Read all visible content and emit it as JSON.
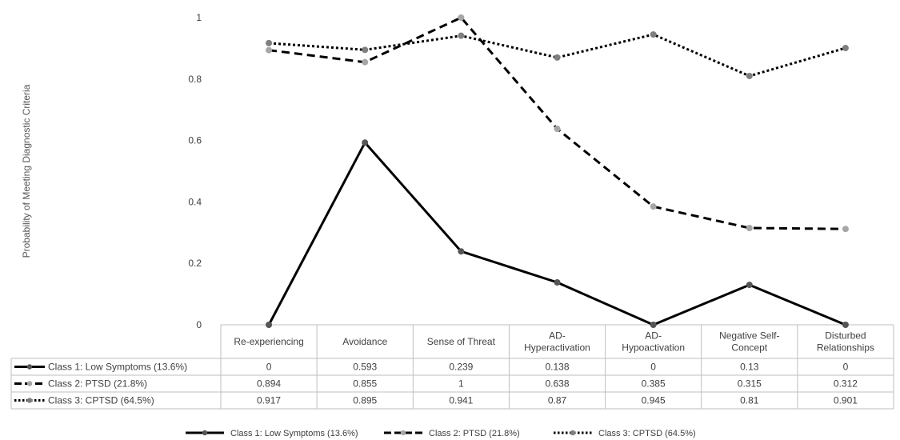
{
  "chart_data": {
    "type": "line",
    "ylabel": "Probability of Meeting Diagnostic Criteria",
    "ylim": [
      0,
      1
    ],
    "yticks": [
      "0",
      "0.2",
      "0.4",
      "0.6",
      "0.8",
      "1"
    ],
    "categories": [
      [
        "Re-experiencing"
      ],
      [
        "Avoidance"
      ],
      [
        "Sense of Threat"
      ],
      [
        "AD-",
        "Hyperactivation"
      ],
      [
        "AD-",
        "Hypoactivation"
      ],
      [
        "Negative Self-",
        "Concept"
      ],
      [
        "Disturbed",
        "Relationships"
      ]
    ],
    "series": [
      {
        "name": "Class 1: Low Symptoms (13.6%)",
        "style": "solid",
        "marker_color": "#555555",
        "values": [
          0,
          0.593,
          0.239,
          0.138,
          0,
          0.13,
          0
        ],
        "labels": [
          "0",
          "0.593",
          "0.239",
          "0.138",
          "0",
          "0.13",
          "0"
        ]
      },
      {
        "name": "Class 2: PTSD (21.8%)",
        "style": "dashed",
        "marker_color": "#a6a6a6",
        "values": [
          0.894,
          0.855,
          1,
          0.638,
          0.385,
          0.315,
          0.312
        ],
        "labels": [
          "0.894",
          "0.855",
          "1",
          "0.638",
          "0.385",
          "0.315",
          "0.312"
        ]
      },
      {
        "name": "Class 3: CPTSD (64.5%)",
        "style": "dotted",
        "marker_color": "#7f7f7f",
        "values": [
          0.917,
          0.895,
          0.941,
          0.87,
          0.945,
          0.81,
          0.901
        ],
        "labels": [
          "0.917",
          "0.895",
          "0.941",
          "0.87",
          "0.945",
          "0.81",
          "0.901"
        ]
      }
    ],
    "line_color": "#000000",
    "grid_color": "#bfbfbf",
    "legend_position": "bottom",
    "data_table": true
  }
}
